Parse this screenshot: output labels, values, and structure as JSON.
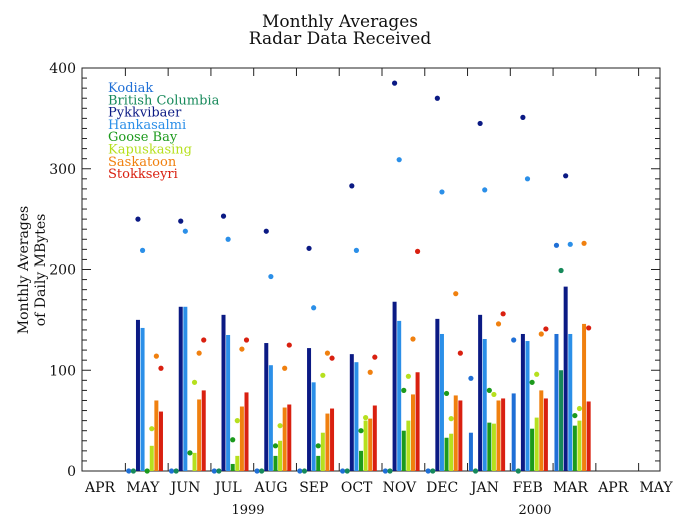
{
  "chart_data": {
    "type": "bar",
    "title": "Monthly Averages",
    "subtitle": "Radar Data Received",
    "ylabel_line1": "Monthly Averages",
    "ylabel_line2": "of Daily MBytes",
    "xlabel": "",
    "ylim": [
      0,
      400
    ],
    "yticks": [
      "0",
      "100",
      "200",
      "300",
      "400"
    ],
    "categories": [
      "APR",
      "MAY",
      "JUN",
      "JUL",
      "AUG",
      "SEP",
      "OCT",
      "NOV",
      "DEC",
      "JAN",
      "FEB",
      "MAR",
      "APR",
      "MAY"
    ],
    "years": [
      "1999",
      "2000"
    ],
    "legend_placement": "top-left",
    "series": [
      {
        "name": "Kodiak",
        "color": "#1f6fd6",
        "values": [
          null,
          0,
          0,
          0,
          0,
          0,
          0,
          0,
          0,
          38,
          77,
          136,
          null,
          null
        ],
        "max": [
          null,
          0,
          0,
          0,
          0,
          0,
          0,
          0,
          0,
          92,
          130,
          224,
          null,
          null
        ]
      },
      {
        "name": "British Columbia",
        "color": "#16895a",
        "values": [
          null,
          0,
          0,
          0,
          0,
          0,
          0,
          0,
          0,
          0,
          0,
          100,
          null,
          null
        ],
        "max": [
          null,
          0,
          0,
          0,
          0,
          0,
          0,
          0,
          0,
          0,
          0,
          199,
          null,
          null
        ]
      },
      {
        "name": "Pykkvibaer",
        "color": "#0b1a84",
        "values": [
          null,
          150,
          163,
          155,
          127,
          122,
          116,
          168,
          151,
          155,
          136,
          183,
          null,
          null
        ],
        "max": [
          null,
          250,
          248,
          253,
          238,
          221,
          283,
          385,
          370,
          345,
          351,
          293,
          null,
          null
        ]
      },
      {
        "name": "Hankasalmi",
        "color": "#2b8fe8",
        "values": [
          null,
          142,
          163,
          135,
          105,
          88,
          108,
          149,
          136,
          131,
          129,
          136,
          null,
          null
        ],
        "max": [
          null,
          219,
          238,
          230,
          193,
          162,
          219,
          309,
          277,
          279,
          290,
          225,
          null,
          null
        ]
      },
      {
        "name": "Goose Bay",
        "color": "#1c9a1c",
        "values": [
          null,
          0,
          0,
          7,
          15,
          15,
          20,
          40,
          33,
          48,
          42,
          45,
          null,
          null
        ],
        "max": [
          null,
          0,
          18,
          31,
          25,
          25,
          40,
          80,
          77,
          80,
          88,
          55,
          null,
          null
        ]
      },
      {
        "name": "Kapuskasing",
        "color": "#b6e01e",
        "values": [
          null,
          25,
          18,
          15,
          30,
          38,
          50,
          50,
          37,
          47,
          53,
          50,
          null,
          null
        ],
        "max": [
          null,
          42,
          88,
          50,
          45,
          95,
          53,
          94,
          52,
          76,
          96,
          62,
          null,
          null
        ]
      },
      {
        "name": "Saskatoon",
        "color": "#f0800f",
        "values": [
          null,
          70,
          71,
          64,
          63,
          57,
          52,
          76,
          75,
          70,
          80,
          146,
          null,
          null
        ],
        "max": [
          null,
          114,
          117,
          121,
          102,
          117,
          98,
          131,
          176,
          146,
          136,
          226,
          null,
          null
        ]
      },
      {
        "name": "Stokkseyri",
        "color": "#d92010",
        "values": [
          null,
          59,
          80,
          78,
          66,
          62,
          65,
          98,
          70,
          72,
          72,
          69,
          null,
          null
        ],
        "max": [
          null,
          102,
          130,
          130,
          125,
          112,
          113,
          218,
          117,
          156,
          141,
          142,
          null,
          null
        ]
      }
    ]
  }
}
